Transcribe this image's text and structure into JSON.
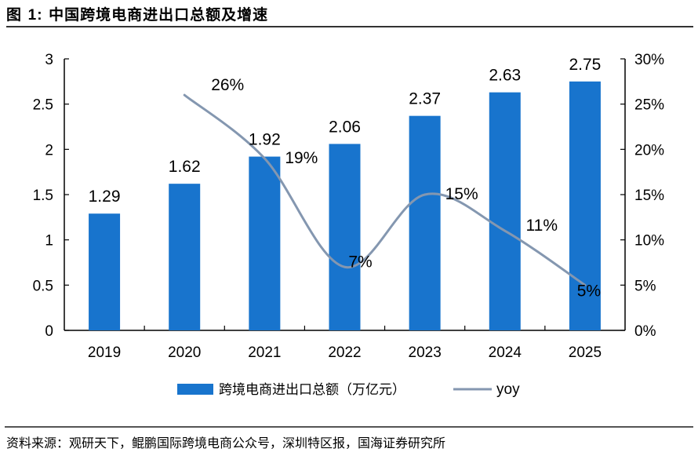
{
  "figure": {
    "title_prefix": "图",
    "title_number": "1:",
    "title_text": "中国跨境电商进出口总额及增速",
    "source": "资料来源：观研天下，鲲鹏国际跨境电商公众号，深圳特区报，国海证券研究所"
  },
  "colors": {
    "bar": "#1874CD",
    "line": "#8497B0",
    "axis": "#000000"
  },
  "chart_data": {
    "type": "bar",
    "title": "中国跨境电商进出口总额及增速",
    "categories": [
      "2019",
      "2020",
      "2021",
      "2022",
      "2023",
      "2024",
      "2025"
    ],
    "series": [
      {
        "name": "跨境电商进出口总额（万亿元）",
        "type": "bar",
        "axis": "left",
        "values": [
          1.29,
          1.62,
          1.92,
          2.06,
          2.37,
          2.63,
          2.75
        ],
        "labels": [
          "1.29",
          "1.62",
          "1.92",
          "2.06",
          "2.37",
          "2.63",
          "2.75"
        ]
      },
      {
        "name": "yoy",
        "type": "line",
        "axis": "right",
        "smooth": true,
        "values": [
          null,
          26,
          19,
          7,
          15,
          11,
          5
        ],
        "labels": [
          null,
          "26%",
          "19%",
          "7%",
          "15%",
          "11%",
          "5%"
        ]
      }
    ],
    "left_axis": {
      "ylim": [
        0,
        3
      ],
      "ticks": [
        0,
        0.5,
        1,
        1.5,
        2,
        2.5,
        3
      ],
      "tick_labels": [
        "0",
        "0.5",
        "1",
        "1.5",
        "2",
        "2.5",
        "3"
      ]
    },
    "right_axis": {
      "ylim": [
        0,
        30
      ],
      "ticks": [
        0,
        5,
        10,
        15,
        20,
        25,
        30
      ],
      "tick_labels": [
        "0%",
        "5%",
        "10%",
        "15%",
        "20%",
        "25%",
        "30%"
      ]
    },
    "xlabel": "",
    "ylabel": "",
    "grid": false,
    "legend": {
      "position": "bottom",
      "entries": [
        "跨境电商进出口总额（万亿元）",
        "yoy"
      ]
    }
  }
}
